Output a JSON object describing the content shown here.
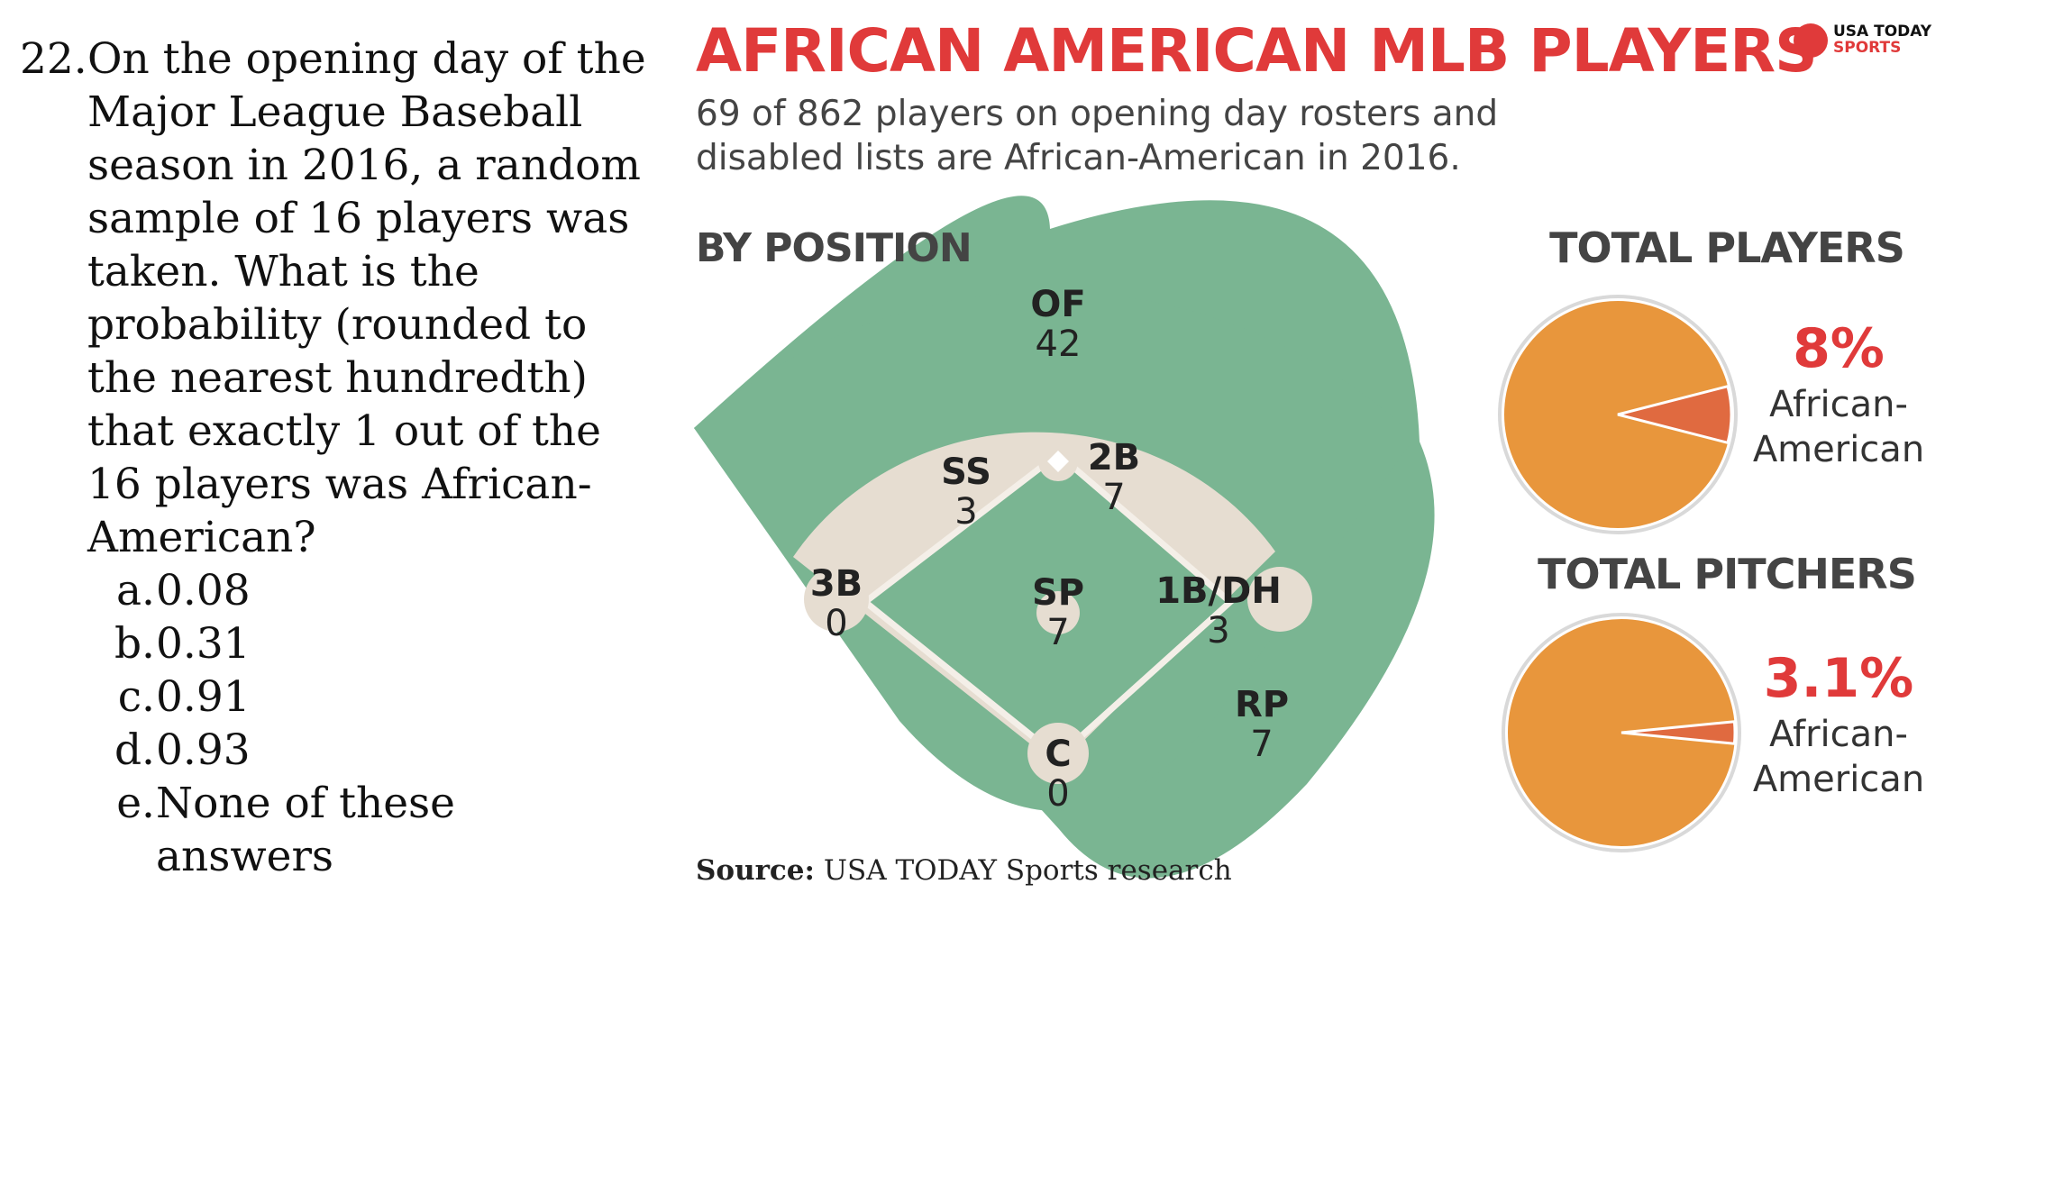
{
  "question": {
    "number": "22.",
    "text": "On the opening day of the Major League Baseball season in 2016, a random sample of 16 players was taken. What is the probability (rounded to the nearest hundredth) that exactly 1 out of the 16 players was African-American?",
    "answers": [
      {
        "letter": "a.",
        "text": "0.08"
      },
      {
        "letter": "b.",
        "text": "0.31"
      },
      {
        "letter": "c.",
        "text": "0.91"
      },
      {
        "letter": "d.",
        "text": "0.93"
      },
      {
        "letter": "e.",
        "text": "None of these answers"
      }
    ]
  },
  "infographic": {
    "title": "AFRICAN AMERICAN MLB PLAYERS",
    "brand": {
      "line1": "USA TODAY",
      "line2": "SPORTS"
    },
    "subtitle": "69 of 862 players on opening day rosters and disabled lists are African-American in 2016.",
    "by_position_title": "BY POSITION",
    "positions": {
      "of": {
        "label": "OF",
        "value": "42"
      },
      "ss": {
        "label": "SS",
        "value": "3"
      },
      "second": {
        "label": "2B",
        "value": "7"
      },
      "third": {
        "label": "3B",
        "value": "0"
      },
      "sp": {
        "label": "SP",
        "value": "7"
      },
      "first_dh": {
        "label": "1B/DH",
        "value": "3"
      },
      "rp": {
        "label": "RP",
        "value": "7"
      },
      "c": {
        "label": "C",
        "value": "0"
      }
    },
    "total_players": {
      "title": "TOTAL PLAYERS",
      "percent_label": "8%",
      "percent": 8,
      "caption": "African-American"
    },
    "total_pitchers": {
      "title": "TOTAL PITCHERS",
      "percent_label": "3.1%",
      "percent": 3.1,
      "caption": "African-American"
    },
    "source_label": "Source:",
    "source_text": "USA TODAY Sports research",
    "colors": {
      "title_red": "#e03a3a",
      "field_green": "#7ab592",
      "infield_dirt": "#e6ddd1",
      "pie_orange": "#e8963c",
      "pie_slice": "#e06a40"
    }
  }
}
